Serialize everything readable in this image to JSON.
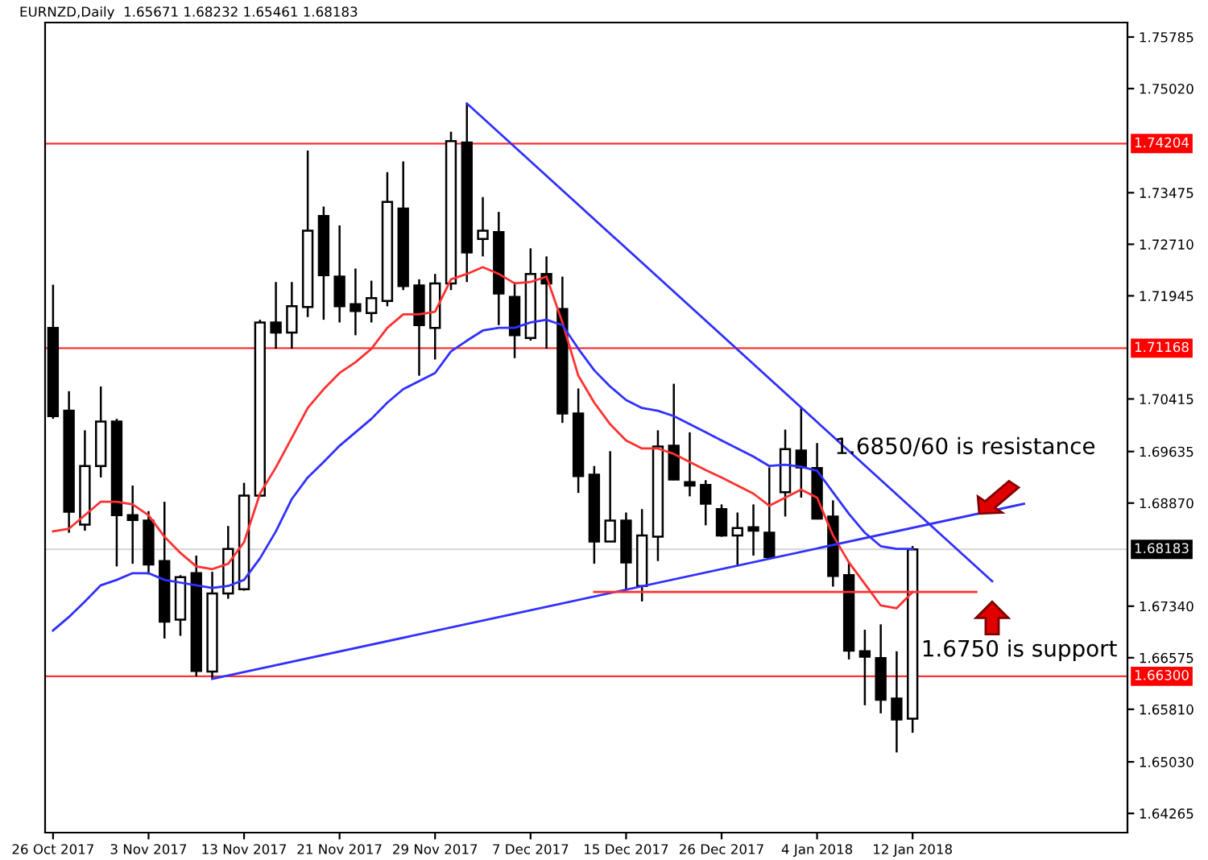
{
  "chart_data": {
    "type": "candlestick",
    "title": "EURNZD,Daily  1.65671 1.68232 1.65461 1.68183",
    "categories": [
      "26 Oct 2017",
      null,
      null,
      null,
      null,
      null,
      "3 Nov 2017",
      null,
      null,
      null,
      null,
      null,
      "13 Nov 2017",
      null,
      null,
      null,
      null,
      null,
      "21 Nov 2017",
      null,
      null,
      null,
      null,
      null,
      "29 Nov 2017",
      null,
      null,
      null,
      null,
      null,
      "7 Dec 2017",
      null,
      null,
      null,
      null,
      null,
      "15 Dec 2017",
      null,
      null,
      null,
      null,
      null,
      "26 Dec 2017",
      null,
      null,
      null,
      null,
      null,
      "4 Jan 2018",
      null,
      null,
      null,
      null,
      null,
      "12 Jan 2018",
      null,
      null,
      null,
      null,
      null,
      null,
      null,
      null,
      null,
      null,
      null,
      null,
      null
    ],
    "ohlc": [
      [
        1.7147,
        1.7211,
        1.7012,
        1.7016
      ],
      [
        1.7024,
        1.7053,
        1.6843,
        1.6874
      ],
      [
        1.6855,
        1.6995,
        1.6846,
        1.6942
      ],
      [
        1.6942,
        1.706,
        1.6925,
        1.7008
      ],
      [
        1.7008,
        1.7012,
        1.6793,
        1.6869
      ],
      [
        1.6869,
        1.6913,
        1.6797,
        1.6862
      ],
      [
        1.6861,
        1.6875,
        1.6781,
        1.6796
      ],
      [
        1.6801,
        1.6889,
        1.6686,
        1.6711
      ],
      [
        1.6714,
        1.678,
        1.669,
        1.6777
      ],
      [
        1.6783,
        1.6809,
        1.663,
        1.6638
      ],
      [
        1.6637,
        1.6785,
        1.6626,
        1.6753
      ],
      [
        1.6753,
        1.6853,
        1.6745,
        1.6819
      ],
      [
        1.6759,
        1.6917,
        1.6757,
        1.6898
      ],
      [
        1.6898,
        1.7159,
        1.6897,
        1.7155
      ],
      [
        1.7155,
        1.7215,
        1.7116,
        1.714
      ],
      [
        1.714,
        1.7215,
        1.7116,
        1.7179
      ],
      [
        1.7178,
        1.741,
        1.7163,
        1.7291
      ],
      [
        1.7313,
        1.7327,
        1.7159,
        1.7225
      ],
      [
        1.7223,
        1.7299,
        1.7155,
        1.7179
      ],
      [
        1.7182,
        1.7235,
        1.7136,
        1.7172
      ],
      [
        1.7169,
        1.7217,
        1.7155,
        1.7191
      ],
      [
        1.7187,
        1.7378,
        1.7179,
        1.7334
      ],
      [
        1.7324,
        1.7394,
        1.7203,
        1.7209
      ],
      [
        1.721,
        1.7219,
        1.7076,
        1.7151
      ],
      [
        1.7147,
        1.7227,
        1.71,
        1.7213
      ],
      [
        1.7213,
        1.7438,
        1.7203,
        1.7424
      ],
      [
        1.7422,
        1.748,
        1.7215,
        1.7259
      ],
      [
        1.7279,
        1.7341,
        1.7253,
        1.7291
      ],
      [
        1.7289,
        1.7319,
        1.7151,
        1.7198
      ],
      [
        1.7193,
        1.7215,
        1.7102,
        1.7136
      ],
      [
        1.7132,
        1.7265,
        1.7128,
        1.7227
      ],
      [
        1.7227,
        1.7253,
        1.7116,
        1.7213
      ],
      [
        1.7175,
        1.7223,
        1.7006,
        1.702
      ],
      [
        1.702,
        1.7057,
        1.6902,
        1.6927
      ],
      [
        1.6929,
        1.6942,
        1.6797,
        1.683
      ],
      [
        1.683,
        1.6964,
        1.683,
        1.6861
      ],
      [
        1.6861,
        1.6873,
        1.6757,
        1.6799
      ],
      [
        1.6764,
        1.6878,
        1.6741,
        1.6839
      ],
      [
        1.6837,
        1.6995,
        1.6801,
        1.6971
      ],
      [
        1.6972,
        1.7064,
        1.6921,
        1.6922
      ],
      [
        1.6918,
        1.6992,
        1.6897,
        1.6913
      ],
      [
        1.6914,
        1.6921,
        1.6854,
        1.6886
      ],
      [
        1.6878,
        1.6885,
        1.6837,
        1.6839
      ],
      [
        1.6839,
        1.6873,
        1.6793,
        1.685
      ],
      [
        1.6851,
        1.6885,
        1.6809,
        1.6846
      ],
      [
        1.6843,
        1.694,
        1.6805,
        1.6807
      ],
      [
        1.6903,
        1.6996,
        1.6867,
        1.6967
      ],
      [
        1.6965,
        1.7028,
        1.6895,
        1.694
      ],
      [
        1.6939,
        1.6976,
        1.6864,
        1.6864
      ],
      [
        1.6867,
        1.6891,
        1.6763,
        1.6779
      ],
      [
        1.678,
        1.68,
        1.6655,
        1.6668
      ],
      [
        1.6667,
        1.6699,
        1.6587,
        1.6659
      ],
      [
        1.6657,
        1.6707,
        1.6575,
        1.6595
      ],
      [
        1.6597,
        1.6667,
        1.6517,
        1.6566
      ],
      [
        1.65671,
        1.68232,
        1.65461,
        1.68183
      ],
      null,
      null,
      null,
      null,
      null,
      null,
      null,
      null,
      null,
      null,
      null,
      null,
      null
    ],
    "series": [
      {
        "type": "line",
        "color": "#ff3030",
        "values": [
          1.6845,
          1.6849,
          1.6869,
          1.6889,
          1.6889,
          1.6885,
          1.6869,
          1.6837,
          1.6813,
          1.6793,
          1.6789,
          1.6797,
          1.6829,
          1.6901,
          1.694,
          1.6984,
          1.7028,
          1.7056,
          1.708,
          1.7096,
          1.7116,
          1.7147,
          1.7167,
          1.7167,
          1.7171,
          1.7219,
          1.7227,
          1.7237,
          1.7227,
          1.7213,
          1.7215,
          1.7223,
          1.7155,
          1.7076,
          1.7036,
          1.7004,
          1.698,
          1.6968,
          1.6968,
          1.696,
          1.6948,
          1.6936,
          1.6925,
          1.6913,
          1.6901,
          1.6883,
          1.6895,
          1.6907,
          1.6895,
          1.6839,
          1.6799,
          1.6767,
          1.6735,
          1.6731,
          1.6755,
          null,
          null,
          null,
          null,
          null,
          null,
          null,
          null,
          null,
          null,
          null,
          null,
          null
        ]
      },
      {
        "type": "line",
        "color": "#3030ff",
        "values": [
          1.6698,
          1.6718,
          1.6741,
          1.6765,
          1.6773,
          1.6783,
          1.6783,
          1.6773,
          1.6769,
          1.6765,
          1.6761,
          1.6764,
          1.6773,
          1.6805,
          1.6845,
          1.6893,
          1.6925,
          1.6948,
          1.6972,
          1.6992,
          1.7012,
          1.7036,
          1.7056,
          1.7068,
          1.708,
          1.7112,
          1.7128,
          1.7143,
          1.7147,
          1.7147,
          1.7155,
          1.7159,
          1.7151,
          1.7116,
          1.7084,
          1.706,
          1.704,
          1.7028,
          1.7024,
          1.7016,
          1.7004,
          1.6992,
          1.698,
          1.6968,
          1.6956,
          1.6942,
          1.6944,
          1.6941,
          1.6935,
          1.6903,
          1.6871,
          1.6843,
          1.6823,
          1.6819,
          1.6819,
          null,
          null,
          null,
          null,
          null,
          null,
          null,
          null,
          null,
          null,
          null,
          null,
          null
        ]
      },
      {
        "type": "line",
        "color": "#3030ff",
        "values": [
          null,
          null,
          null,
          null,
          null,
          null,
          null,
          null,
          null,
          null,
          1.6626,
          null,
          null,
          null,
          null,
          null,
          null,
          null,
          null,
          null,
          null,
          null,
          null,
          null,
          null,
          null,
          null,
          null,
          null,
          null,
          null,
          null,
          null,
          null,
          null,
          null,
          null,
          null,
          null,
          null,
          null,
          null,
          null,
          null,
          null,
          null,
          null,
          null,
          null,
          null,
          null,
          null,
          null,
          null,
          null,
          null,
          null,
          null,
          null,
          null,
          null,
          1.6886,
          null,
          null,
          null,
          null,
          null,
          null
        ]
      },
      {
        "type": "line",
        "color": "#3030ff",
        "values": [
          null,
          null,
          null,
          null,
          null,
          null,
          null,
          null,
          null,
          null,
          null,
          null,
          null,
          null,
          null,
          null,
          null,
          null,
          null,
          null,
          null,
          null,
          null,
          null,
          null,
          null,
          1.748,
          null,
          null,
          null,
          null,
          null,
          null,
          null,
          null,
          null,
          null,
          null,
          null,
          null,
          null,
          null,
          null,
          null,
          null,
          null,
          null,
          null,
          null,
          null,
          null,
          null,
          null,
          null,
          null,
          null,
          null,
          null,
          null,
          1.6771,
          null,
          null,
          null,
          null,
          null,
          null,
          null,
          null
        ]
      },
      {
        "type": "line",
        "color": "#ff3030",
        "values": [
          null,
          null,
          null,
          null,
          null,
          null,
          null,
          null,
          null,
          null,
          null,
          null,
          null,
          null,
          null,
          null,
          null,
          null,
          null,
          null,
          null,
          null,
          null,
          null,
          null,
          null,
          null,
          null,
          null,
          null,
          null,
          null,
          null,
          null,
          1.6755,
          null,
          null,
          null,
          null,
          null,
          null,
          null,
          null,
          null,
          null,
          null,
          null,
          null,
          null,
          null,
          null,
          null,
          null,
          null,
          null,
          null,
          null,
          null,
          1.6755,
          null,
          null,
          null,
          null,
          null,
          null,
          null,
          null,
          null
        ]
      }
    ],
    "ylim": [
      1.6398,
      1.76
    ],
    "yticks": [
      {
        "value": 1.75785,
        "label": "1.75785"
      },
      {
        "value": 1.7502,
        "label": "1.75020"
      },
      {
        "value": 1.73475,
        "label": "1.73475"
      },
      {
        "value": 1.7271,
        "label": "1.72710"
      },
      {
        "value": 1.71945,
        "label": "1.71945"
      },
      {
        "value": 1.70415,
        "label": "1.70415"
      },
      {
        "value": 1.69635,
        "label": "1.69635"
      },
      {
        "value": 1.6887,
        "label": "1.68870"
      },
      {
        "value": 1.6734,
        "label": "1.67340"
      },
      {
        "value": 1.66575,
        "label": "1.66575"
      },
      {
        "value": 1.6581,
        "label": "1.65810"
      },
      {
        "value": 1.6503,
        "label": "1.65030"
      },
      {
        "value": 1.64265,
        "label": "1.64265"
      }
    ],
    "ref_lines": [
      {
        "axis": "y",
        "value": 1.74204,
        "label": "1.74204",
        "color": "#ff0000"
      },
      {
        "axis": "y",
        "value": 1.71168,
        "label": "1.71168",
        "color": "#ff0000"
      },
      {
        "axis": "y",
        "value": 1.663,
        "label": "1.66300",
        "color": "#ff0000"
      },
      {
        "axis": "y",
        "value": 1.68183,
        "label": "1.68183",
        "color": "#000000"
      }
    ],
    "annotations": [
      "1.6850/60 is resistance",
      "1.6750 is support"
    ]
  }
}
